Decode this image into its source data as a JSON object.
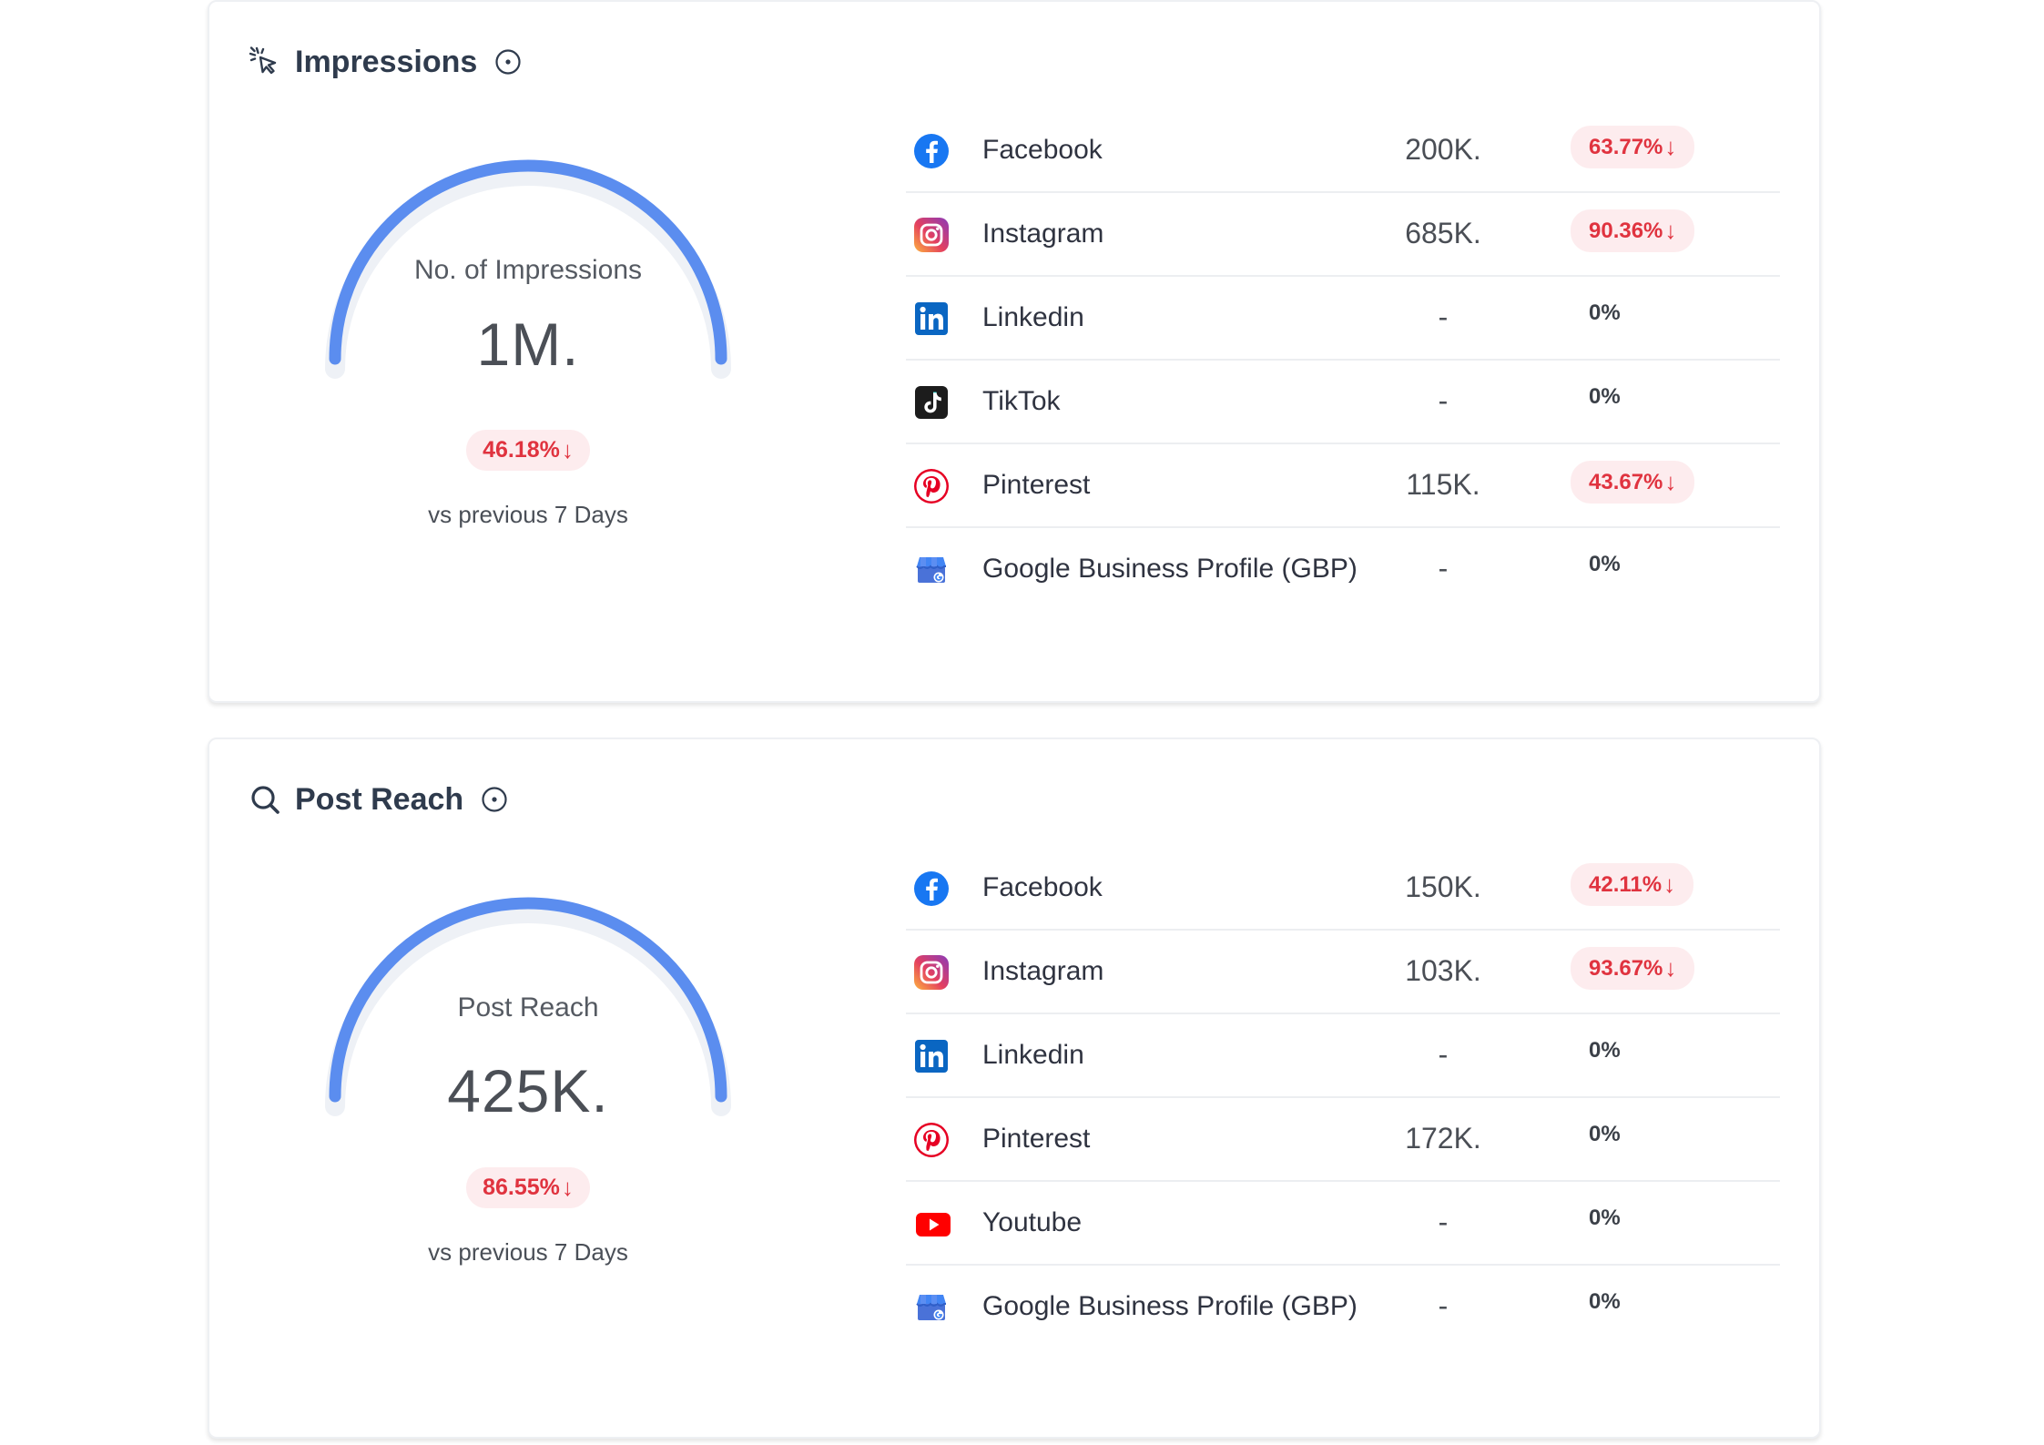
{
  "impressions": {
    "title": "Impressions",
    "gauge_label": "No. of Impressions",
    "gauge_value": "1M.",
    "change": "46.18%",
    "compare_text": "vs previous 7 Days",
    "platforms": [
      {
        "name": "Facebook",
        "value": "200K.",
        "change": "63.77%",
        "trend": "down",
        "icon": "facebook-icon"
      },
      {
        "name": "Instagram",
        "value": "685K.",
        "change": "90.36%",
        "trend": "down",
        "icon": "instagram-icon"
      },
      {
        "name": "Linkedin",
        "value": "-",
        "change": "0%",
        "trend": "none",
        "icon": "linkedin-icon"
      },
      {
        "name": "TikTok",
        "value": "-",
        "change": "0%",
        "trend": "none",
        "icon": "tiktok-icon"
      },
      {
        "name": "Pinterest",
        "value": "115K.",
        "change": "43.67%",
        "trend": "down",
        "icon": "pinterest-icon"
      },
      {
        "name": "Google Business Profile (GBP)",
        "value": "-",
        "change": "0%",
        "trend": "none",
        "icon": "gbp-icon"
      }
    ]
  },
  "post_reach": {
    "title": "Post Reach",
    "gauge_label": "Post Reach",
    "gauge_value": "425K.",
    "change": "86.55%",
    "compare_text": "vs previous 7 Days",
    "platforms": [
      {
        "name": "Facebook",
        "value": "150K.",
        "change": "42.11%",
        "trend": "down",
        "icon": "facebook-icon"
      },
      {
        "name": "Instagram",
        "value": "103K.",
        "change": "93.67%",
        "trend": "down",
        "icon": "instagram-icon"
      },
      {
        "name": "Linkedin",
        "value": "-",
        "change": "0%",
        "trend": "none",
        "icon": "linkedin-icon"
      },
      {
        "name": "Pinterest",
        "value": "172K.",
        "change": "0%",
        "trend": "none",
        "icon": "pinterest-icon"
      },
      {
        "name": "Youtube",
        "value": "-",
        "change": "0%",
        "trend": "none",
        "icon": "youtube-icon"
      },
      {
        "name": "Google Business Profile (GBP)",
        "value": "-",
        "change": "0%",
        "trend": "none",
        "icon": "gbp-icon"
      }
    ]
  },
  "colors": {
    "gauge_arc": "#5b8def",
    "gauge_track": "#eef1f6",
    "down_badge_bg": "#fdecee",
    "down_badge_text": "#e0333f"
  }
}
